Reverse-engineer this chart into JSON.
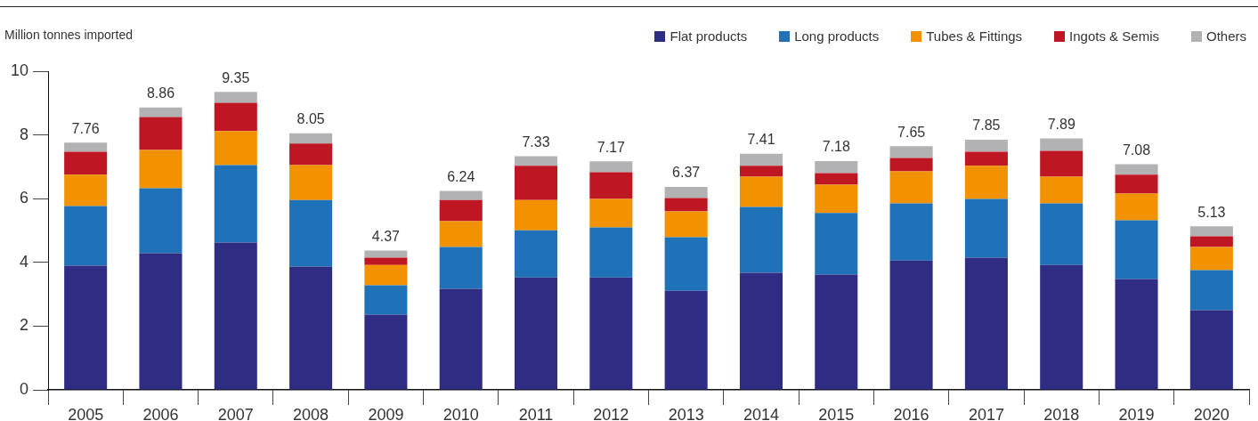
{
  "chart_data": {
    "type": "bar",
    "stacked": true,
    "ylabel": "Million tonnes imported",
    "legend": "top right",
    "categories": [
      "2005",
      "2006",
      "2007",
      "2008",
      "2009",
      "2010",
      "2011",
      "2012",
      "2013",
      "2014",
      "2015",
      "2016",
      "2017",
      "2018",
      "2019",
      "2020"
    ],
    "series": [
      {
        "name": "Flat products",
        "color": "#2e2d83",
        "values": [
          3.9,
          4.29,
          4.62,
          3.87,
          2.36,
          3.17,
          3.53,
          3.53,
          3.11,
          3.67,
          3.62,
          4.06,
          4.15,
          3.92,
          3.48,
          2.5
        ]
      },
      {
        "name": "Long products",
        "color": "#1f72b8",
        "values": [
          1.87,
          2.04,
          2.43,
          2.09,
          0.92,
          1.31,
          1.48,
          1.57,
          1.68,
          2.07,
          1.93,
          1.79,
          1.84,
          1.93,
          1.84,
          1.26
        ]
      },
      {
        "name": "Tubes & Fittings",
        "color": "#f29200",
        "values": [
          0.98,
          1.2,
          1.07,
          1.09,
          0.64,
          0.81,
          0.95,
          0.89,
          0.81,
          0.95,
          0.89,
          1.01,
          1.04,
          0.84,
          0.84,
          0.72
        ]
      },
      {
        "name": "Ingots & Semis",
        "color": "#be1622",
        "values": [
          0.72,
          1.03,
          0.89,
          0.68,
          0.23,
          0.67,
          1.07,
          0.84,
          0.42,
          0.34,
          0.36,
          0.42,
          0.44,
          0.81,
          0.59,
          0.34
        ]
      },
      {
        "name": "Others",
        "color": "#b2b2b5",
        "values": [
          0.29,
          0.3,
          0.34,
          0.32,
          0.22,
          0.28,
          0.3,
          0.34,
          0.35,
          0.38,
          0.38,
          0.37,
          0.38,
          0.39,
          0.33,
          0.31
        ]
      }
    ],
    "ylim": [
      0,
      10
    ],
    "yticks": [
      0,
      2,
      4,
      6,
      8,
      10
    ],
    "totals": [
      "7.76",
      "8.86",
      "9.35",
      "8.05",
      "4.37",
      "6.24",
      "7.33",
      "7.17",
      "6.37",
      "7.41",
      "7.18",
      "7.65",
      "7.85",
      "7.89",
      "7.08",
      "5.13"
    ]
  }
}
